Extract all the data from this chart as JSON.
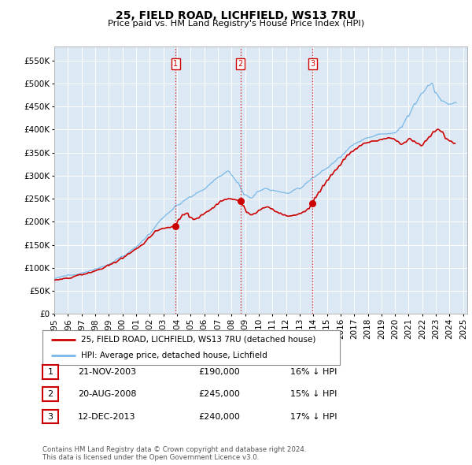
{
  "title": "25, FIELD ROAD, LICHFIELD, WS13 7RU",
  "subtitle": "Price paid vs. HM Land Registry's House Price Index (HPI)",
  "background_color": "#ffffff",
  "plot_bg_color": "#dce9f5",
  "grid_color": "#ffffff",
  "hpi_color": "#7ab8e8",
  "price_color": "#cc0000",
  "ylim": [
    0,
    580000
  ],
  "yticks": [
    0,
    50000,
    100000,
    150000,
    200000,
    250000,
    300000,
    350000,
    400000,
    450000,
    500000,
    550000
  ],
  "ytick_labels": [
    "£0",
    "£50K",
    "£100K",
    "£150K",
    "£200K",
    "£250K",
    "£300K",
    "£350K",
    "£400K",
    "£450K",
    "£500K",
    "£550K"
  ],
  "transactions": [
    {
      "num": 1,
      "date": "21-NOV-2003",
      "price": 190000,
      "pct": "16%",
      "dir": "↓",
      "year_x": 2003.9
    },
    {
      "num": 2,
      "date": "20-AUG-2008",
      "price": 245000,
      "pct": "15%",
      "dir": "↓",
      "year_x": 2008.65
    },
    {
      "num": 3,
      "date": "12-DEC-2013",
      "price": 240000,
      "pct": "17%",
      "dir": "↓",
      "year_x": 2013.95
    }
  ],
  "xlim": [
    1995.0,
    2025.3
  ],
  "xtick_years": [
    1995,
    1996,
    1997,
    1998,
    1999,
    2000,
    2001,
    2002,
    2003,
    2004,
    2005,
    2006,
    2007,
    2008,
    2009,
    2010,
    2011,
    2012,
    2013,
    2014,
    2015,
    2016,
    2017,
    2018,
    2019,
    2020,
    2021,
    2022,
    2023,
    2024,
    2025
  ],
  "footnote_line1": "Contains HM Land Registry data © Crown copyright and database right 2024.",
  "footnote_line2": "This data is licensed under the Open Government Licence v3.0.",
  "legend_label_price": "25, FIELD ROAD, LICHFIELD, WS13 7RU (detached house)",
  "legend_label_hpi": "HPI: Average price, detached house, Lichfield"
}
